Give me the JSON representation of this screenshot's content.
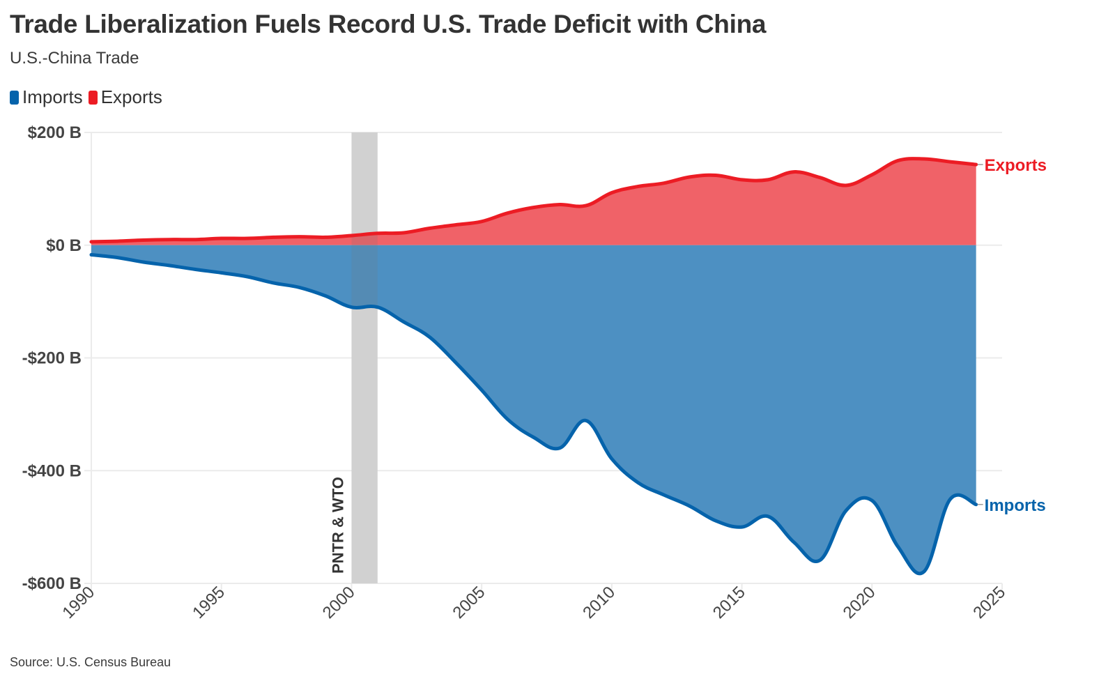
{
  "header": {
    "title": "Trade Liberalization Fuels Record U.S. Trade Deficit with China",
    "subtitle": "U.S.-China Trade"
  },
  "legend": {
    "items": [
      {
        "label": "Imports",
        "color": "#0563ab"
      },
      {
        "label": "Exports",
        "color": "#ec1c24"
      }
    ]
  },
  "footer": {
    "source": "Source: U.S. Census Bureau"
  },
  "colors": {
    "imports_line": "#0563ab",
    "imports_fill": "#4d90c2",
    "exports_line": "#ec1c24",
    "exports_fill": "#f06268",
    "annotation_band": "#e6e6e6",
    "grid": "#ebebeb"
  },
  "chart_data": {
    "type": "area",
    "title": "Trade Liberalization Fuels Record U.S. Trade Deficit with China",
    "subtitle": "U.S.-China Trade",
    "xlabel": "",
    "ylabel": "",
    "xlim": [
      1990,
      2025
    ],
    "ylim": [
      -600,
      200
    ],
    "grid": true,
    "legend_position": "top-left",
    "x_ticks": [
      1990,
      1995,
      2000,
      2005,
      2010,
      2015,
      2020,
      2025
    ],
    "x_tick_labels": [
      "1990",
      "1995",
      "2000",
      "2005",
      "2010",
      "2015",
      "2020",
      "2025"
    ],
    "y_ticks": [
      200,
      0,
      -200,
      -400,
      -600
    ],
    "y_tick_labels": [
      "$200 B",
      "$0 B",
      "-$200 B",
      "-$400 B",
      "-$600 B"
    ],
    "x": [
      1990,
      1991,
      1992,
      1993,
      1994,
      1995,
      1996,
      1997,
      1998,
      1999,
      2000,
      2001,
      2002,
      2003,
      2004,
      2005,
      2006,
      2007,
      2008,
      2009,
      2010,
      2011,
      2012,
      2013,
      2014,
      2015,
      2016,
      2017,
      2018,
      2019,
      2020,
      2021,
      2022,
      2023,
      2024
    ],
    "series": [
      {
        "name": "Exports",
        "end_label": "Exports",
        "values": [
          6,
          7,
          9,
          10,
          10,
          12,
          12,
          14,
          15,
          14,
          17,
          21,
          22,
          30,
          36,
          42,
          57,
          67,
          72,
          70,
          93,
          104,
          110,
          121,
          124,
          116,
          116,
          130,
          120,
          106,
          125,
          150,
          153,
          148,
          143
        ]
      },
      {
        "name": "Imports",
        "end_label": "Imports",
        "values": [
          -17,
          -22,
          -30,
          -36,
          -43,
          -49,
          -56,
          -67,
          -75,
          -90,
          -110,
          -110,
          -136,
          -163,
          -208,
          -257,
          -309,
          -341,
          -360,
          -311,
          -379,
          -421,
          -443,
          -463,
          -489,
          -500,
          -481,
          -527,
          -559,
          -471,
          -453,
          -535,
          -579,
          -451,
          -460
        ]
      }
    ],
    "annotations": [
      {
        "label": "PNTR & WTO",
        "x_start": 2000,
        "x_end": 2001
      }
    ]
  }
}
